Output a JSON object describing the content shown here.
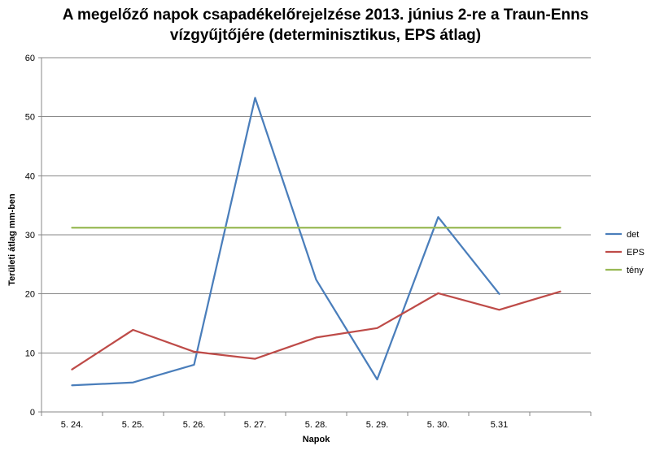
{
  "chart_data": {
    "type": "line",
    "title_lines": [
      "A megelőző napok csapadékelőrejelzése 2013. június 2-re a Traun-Enns",
      "vízgyűjtőjére (determinisztikus, EPS átlag)"
    ],
    "xlabel": "Napok",
    "ylabel": "Területi átlag mm-ben",
    "categories": [
      "5. 24.",
      "5. 25.",
      "5. 26.",
      "5. 27.",
      "5. 28.",
      "5. 29.",
      "5. 30.",
      "5.31",
      ""
    ],
    "ylim": [
      0,
      60
    ],
    "yticks": [
      0,
      10,
      20,
      30,
      40,
      50,
      60
    ],
    "grid": true,
    "legend_position": "right",
    "series": [
      {
        "name": "det",
        "color": "#4a7ebb",
        "values": [
          4.5,
          5.0,
          8.0,
          53.2,
          22.4,
          5.5,
          33.0,
          20.0,
          null
        ]
      },
      {
        "name": "EPS",
        "color": "#be4b48",
        "values": [
          7.2,
          13.9,
          10.2,
          9.0,
          12.6,
          14.2,
          20.1,
          17.3,
          20.4
        ]
      },
      {
        "name": "tény",
        "color": "#98b954",
        "values": [
          31.2,
          31.2,
          31.2,
          31.2,
          31.2,
          31.2,
          31.2,
          31.2,
          31.2
        ]
      }
    ]
  }
}
